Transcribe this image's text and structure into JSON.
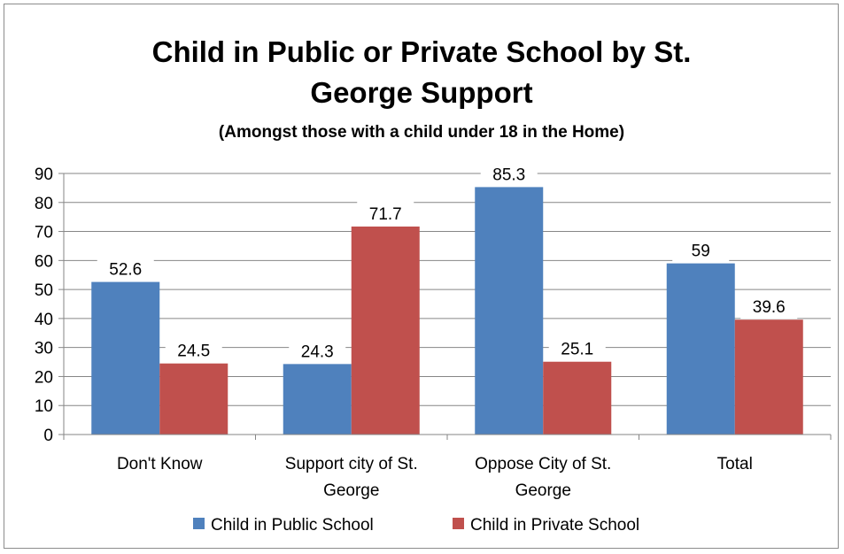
{
  "chart_data": {
    "type": "bar",
    "title_lines": [
      "Child in Public or Private School by St.",
      "George Support"
    ],
    "subtitle": "(Amongst those with a child under 18 in the Home)",
    "categories": [
      [
        "Don't Know"
      ],
      [
        "Support city of St.",
        "George"
      ],
      [
        "Oppose City of St.",
        "George"
      ],
      [
        "Total"
      ]
    ],
    "series": [
      {
        "name": "Child in Public School",
        "color": "#4F81BD",
        "values": [
          52.6,
          24.3,
          85.3,
          59
        ],
        "labels": [
          "52.6",
          "24.3",
          "85.3",
          "59"
        ]
      },
      {
        "name": "Child in Private School",
        "color": "#C0504D",
        "values": [
          24.5,
          71.7,
          25.1,
          39.6
        ],
        "labels": [
          "24.5",
          "71.7",
          "25.1",
          "39.6"
        ]
      }
    ],
    "ylim": [
      0,
      90
    ],
    "yticks": [
      0,
      10,
      20,
      30,
      40,
      50,
      60,
      70,
      80,
      90
    ],
    "grid": true,
    "legend_position": "bottom"
  }
}
